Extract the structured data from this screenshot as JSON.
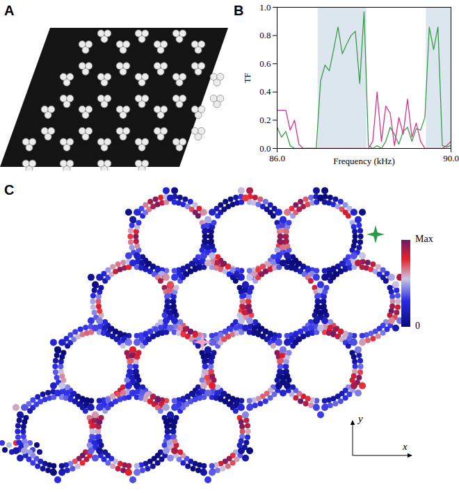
{
  "panel_labels": [
    "A",
    "B",
    "C"
  ],
  "chart_data": {
    "type": "line",
    "xlabel": "Frequency (kHz)",
    "ylabel": "TF",
    "x": [
      86.0,
      86.1,
      86.2,
      86.3,
      86.4,
      86.5,
      86.6,
      86.7,
      86.8,
      86.9,
      87.0,
      87.1,
      87.2,
      87.3,
      87.4,
      87.5,
      87.6,
      87.7,
      87.8,
      87.9,
      88.0,
      88.1,
      88.2,
      88.3,
      88.4,
      88.5,
      88.6,
      88.7,
      88.8,
      88.9,
      89.0,
      89.1,
      89.2,
      89.3,
      89.4,
      89.5,
      89.6,
      89.7,
      89.8,
      89.9,
      90.0
    ],
    "series": [
      {
        "color": "#3a9a4a",
        "values": [
          0.15,
          0.08,
          0.12,
          0.02,
          0,
          0,
          0,
          0,
          0,
          0,
          0.48,
          0.59,
          0.55,
          0.7,
          0.86,
          0.67,
          0.74,
          0.8,
          0.83,
          0.46,
          0.97,
          0.02,
          0,
          0.02,
          0,
          0.05,
          0.15,
          0.1,
          0.03,
          0.12,
          0.15,
          0.05,
          0.14,
          0.13,
          0.22,
          0.86,
          0.7,
          0.86,
          0.02,
          0.01,
          0.02
        ]
      },
      {
        "color": "#d6338a",
        "values": [
          0.27,
          0.27,
          0.27,
          0.13,
          0.2,
          0.03,
          0,
          0,
          0,
          0,
          0,
          0,
          0,
          0,
          0,
          0,
          0,
          0,
          0,
          0,
          0,
          0,
          0.05,
          0.4,
          0.05,
          0.3,
          0.25,
          0.02,
          0.22,
          0.1,
          0.35,
          0.08,
          0.18,
          0.05,
          0,
          0,
          0,
          0,
          0,
          0.02,
          0.05
        ]
      }
    ],
    "bands": [
      [
        86.94,
        88.06
      ],
      [
        89.43,
        90
      ]
    ],
    "xlim": [
      86,
      90
    ],
    "ylim": [
      0,
      1
    ],
    "xticks": [
      86,
      90
    ],
    "yticks": [
      0,
      0.2,
      0.4,
      0.6,
      0.8,
      1
    ]
  },
  "field_map": {
    "colorbar": {
      "range": [
        0,
        1
      ],
      "ticks": [
        {
          "value": 1,
          "label": "Max"
        },
        {
          "value": 0,
          "label": "0"
        }
      ]
    },
    "axes": [
      "y",
      "x"
    ]
  }
}
